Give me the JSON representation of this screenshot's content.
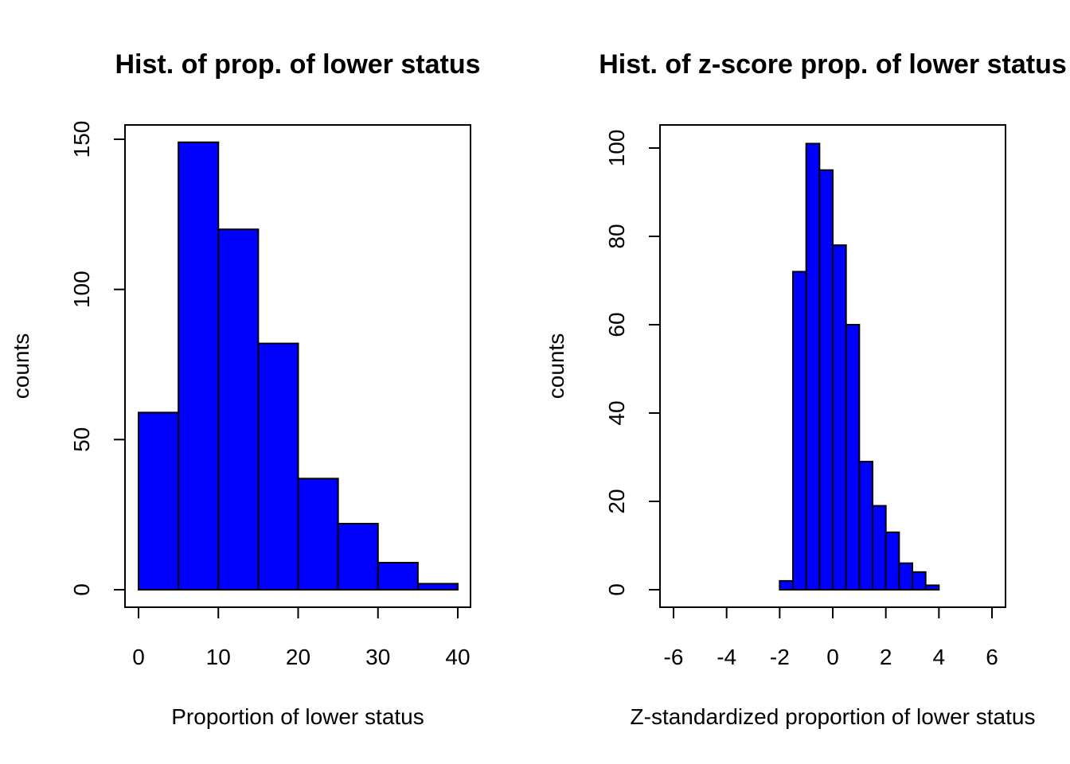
{
  "colors": {
    "bar_fill": "#0000ff",
    "bar_stroke": "#000000",
    "background": "#ffffff"
  },
  "chart_data": [
    {
      "type": "bar",
      "title": "Hist. of prop. of lower status",
      "xlabel": "Proportion of lower status",
      "ylabel": "counts",
      "xlim": [
        0,
        40
      ],
      "ylim": [
        0,
        150
      ],
      "xticks": [
        0,
        10,
        20,
        30,
        40
      ],
      "yticks": [
        0,
        50,
        100,
        150
      ],
      "bins": [
        {
          "from": 0,
          "to": 5,
          "count": 59
        },
        {
          "from": 5,
          "to": 10,
          "count": 149
        },
        {
          "from": 10,
          "to": 15,
          "count": 120
        },
        {
          "from": 15,
          "to": 20,
          "count": 82
        },
        {
          "from": 20,
          "to": 25,
          "count": 37
        },
        {
          "from": 25,
          "to": 30,
          "count": 22
        },
        {
          "from": 30,
          "to": 35,
          "count": 9
        },
        {
          "from": 35,
          "to": 40,
          "count": 2
        }
      ],
      "grid": false
    },
    {
      "type": "bar",
      "title": "Hist. of z-score prop. of lower status",
      "xlabel": "Z-standardized proportion of lower status",
      "ylabel": "counts",
      "xlim": [
        -6,
        6
      ],
      "ylim": [
        0,
        100
      ],
      "xticks": [
        -6,
        -4,
        -2,
        0,
        2,
        4,
        6
      ],
      "yticks": [
        0,
        20,
        40,
        60,
        80,
        100
      ],
      "bins": [
        {
          "from": -2.0,
          "to": -1.5,
          "count": 2
        },
        {
          "from": -1.5,
          "to": -1.0,
          "count": 72
        },
        {
          "from": -1.0,
          "to": -0.5,
          "count": 101
        },
        {
          "from": -0.5,
          "to": 0.0,
          "count": 95
        },
        {
          "from": 0.0,
          "to": 0.5,
          "count": 78
        },
        {
          "from": 0.5,
          "to": 1.0,
          "count": 60
        },
        {
          "from": 1.0,
          "to": 1.5,
          "count": 29
        },
        {
          "from": 1.5,
          "to": 2.0,
          "count": 19
        },
        {
          "from": 2.0,
          "to": 2.5,
          "count": 13
        },
        {
          "from": 2.5,
          "to": 3.0,
          "count": 6
        },
        {
          "from": 3.0,
          "to": 3.5,
          "count": 4
        },
        {
          "from": 3.5,
          "to": 4.0,
          "count": 1
        }
      ],
      "grid": false
    }
  ]
}
